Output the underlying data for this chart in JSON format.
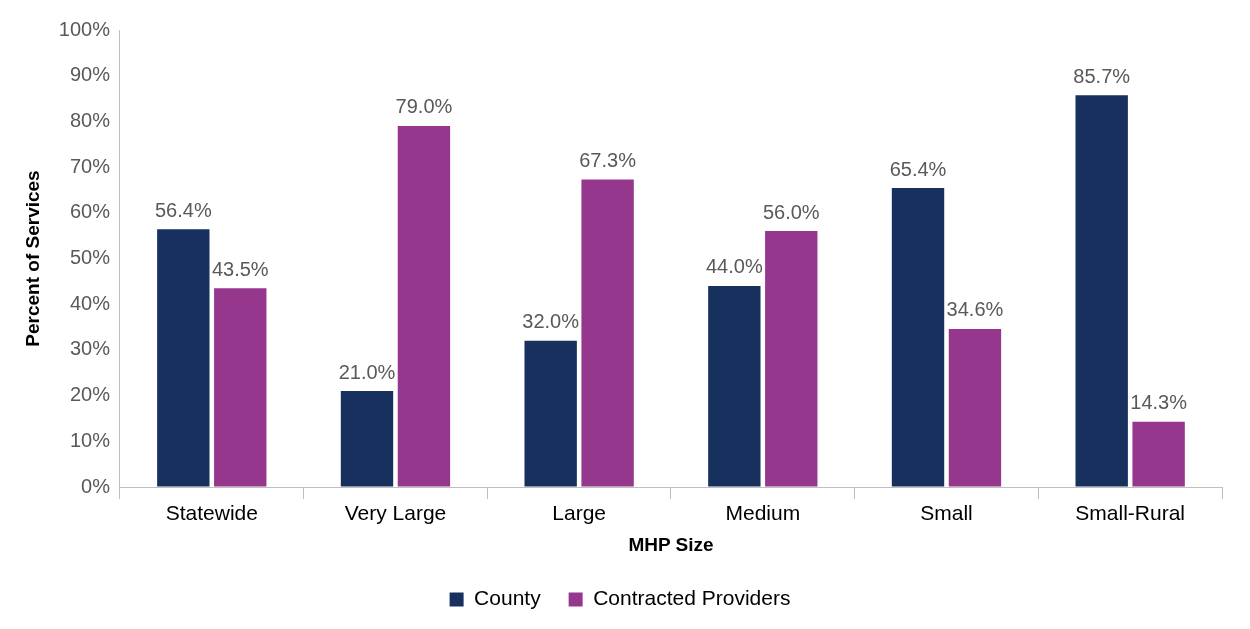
{
  "chart_data": {
    "type": "bar",
    "xlabel": "MHP Size",
    "ylabel": "Percent of Services",
    "categories": [
      "Statewide",
      "Very Large",
      "Large",
      "Medium",
      "Small",
      "Small-Rural"
    ],
    "series": [
      {
        "name": "County",
        "color": "#17305e",
        "values": [
          56.4,
          21.0,
          32.0,
          44.0,
          65.4,
          85.7
        ],
        "value_labels": [
          "56.4%",
          "21.0%",
          "32.0%",
          "44.0%",
          "65.4%",
          "85.7%"
        ]
      },
      {
        "name": "Contracted Providers",
        "color": "#94378d",
        "values": [
          43.5,
          79.0,
          67.3,
          56.0,
          34.6,
          14.3
        ],
        "value_labels": [
          "43.5%",
          "79.0%",
          "67.3%",
          "56.0%",
          "34.6%",
          "14.3%"
        ]
      }
    ],
    "ylim": [
      0,
      100
    ],
    "yticks": [
      {
        "value": 0,
        "label": "0%"
      },
      {
        "value": 10,
        "label": "10%"
      },
      {
        "value": 20,
        "label": "20%"
      },
      {
        "value": 30,
        "label": "30%"
      },
      {
        "value": 40,
        "label": "40%"
      },
      {
        "value": 50,
        "label": "50%"
      },
      {
        "value": 60,
        "label": "60%"
      },
      {
        "value": 70,
        "label": "70%"
      },
      {
        "value": 80,
        "label": "80%"
      },
      {
        "value": 90,
        "label": "90%"
      },
      {
        "value": 100,
        "label": "100%"
      }
    ],
    "grid": false,
    "legend": "bottom"
  }
}
